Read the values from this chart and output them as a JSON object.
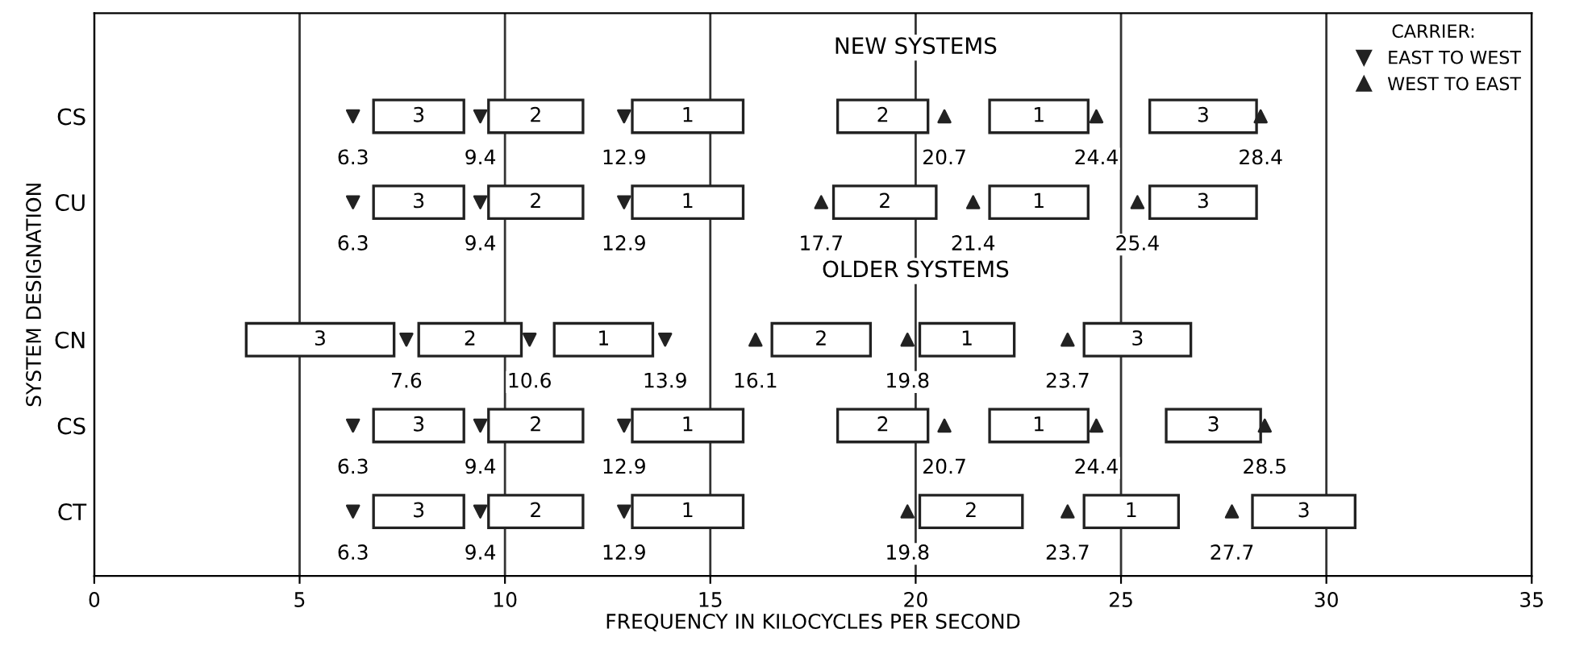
{
  "chart_data": {
    "type": "bar",
    "orientation": "horizontal",
    "xlabel": "FREQUENCY IN KILOCYCLES PER SECOND",
    "ylabel": "SYSTEM DESIGNATION",
    "categories": [
      "CS",
      "CU",
      "CN",
      "CS",
      "CT"
    ],
    "xlim": [
      0,
      35
    ],
    "xticks": [
      0,
      5,
      10,
      15,
      20,
      25,
      30,
      35
    ],
    "grid": "x",
    "legend": "top right",
    "legend_title": "CARRIER:",
    "annotations": [
      "NEW SYSTEMS",
      "OLDER SYSTEMS"
    ],
    "series": [
      {
        "name": "3",
        "color": "#ffffff",
        "base": [
          6.8,
          6.8,
          3.7,
          6.8,
          6.8
        ],
        "values": [
          2.2,
          2.2,
          3.6,
          2.2,
          2.2
        ]
      },
      {
        "name": "2",
        "color": "#ffffff",
        "base": [
          9.6,
          9.6,
          7.9,
          9.6,
          9.6
        ],
        "values": [
          2.3,
          2.3,
          2.5,
          2.3,
          2.3
        ]
      },
      {
        "name": "1",
        "color": "#ffffff",
        "base": [
          13.1,
          13.1,
          11.2,
          13.1,
          13.1
        ],
        "values": [
          2.7,
          2.7,
          2.4,
          2.7,
          2.7
        ]
      },
      {
        "name": "2",
        "color": "#ffffff",
        "base": [
          18.1,
          18.0,
          16.5,
          18.1,
          20.1
        ],
        "values": [
          2.2,
          2.5,
          2.4,
          2.2,
          2.5
        ]
      },
      {
        "name": "1",
        "color": "#ffffff",
        "base": [
          21.8,
          21.8,
          20.1,
          21.8,
          24.1
        ],
        "values": [
          2.4,
          2.4,
          2.3,
          2.4,
          2.3
        ]
      },
      {
        "name": "3",
        "color": "#ffffff",
        "base": [
          25.7,
          25.7,
          24.1,
          26.1,
          28.2
        ],
        "values": [
          2.6,
          2.6,
          2.6,
          2.3,
          2.5
        ]
      },
      {
        "type": "scatter",
        "name": "EAST TO WEST",
        "marker": "triangle_down",
        "color": "#222222",
        "values": [
          6.3,
          6.3,
          7.6,
          6.3,
          6.3
        ],
        "data_labels": true
      },
      {
        "type": "scatter",
        "marker": "triangle_down",
        "color": "#222222",
        "values": [
          9.4,
          9.4,
          10.6,
          9.4,
          9.4
        ],
        "data_labels": true
      },
      {
        "type": "scatter",
        "marker": "triangle_down",
        "color": "#222222",
        "values": [
          12.9,
          12.9,
          13.9,
          12.9,
          12.9
        ],
        "data_labels": true
      },
      {
        "type": "scatter",
        "name": "WEST TO EAST",
        "marker": "triangle",
        "color": "#222222",
        "values": [
          20.7,
          17.7,
          16.1,
          20.7,
          19.8
        ],
        "data_labels": true
      },
      {
        "type": "scatter",
        "marker": "triangle",
        "color": "#222222",
        "values": [
          24.4,
          21.4,
          19.8,
          24.4,
          23.7
        ],
        "data_labels": true
      },
      {
        "type": "scatter",
        "marker": "triangle",
        "color": "#222222",
        "values": [
          28.4,
          25.4,
          23.7,
          28.5,
          27.7
        ],
        "data_labels": true
      }
    ]
  }
}
